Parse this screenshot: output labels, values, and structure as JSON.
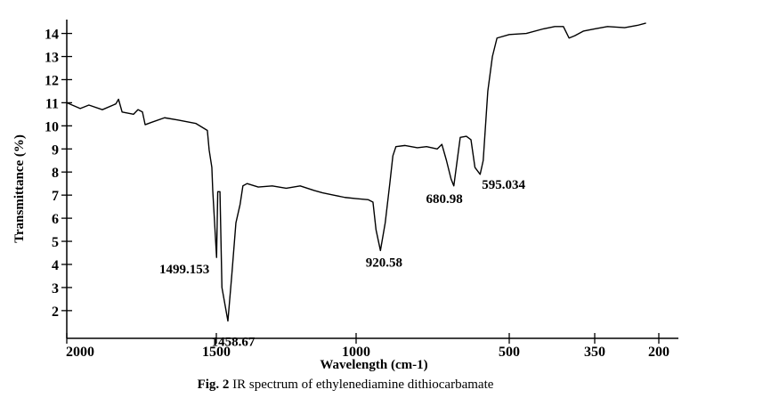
{
  "chart_data": {
    "type": "line",
    "y_label": "Transmittance (%)",
    "x_label": "Wavelength (cm-1)",
    "caption_label": "Fig. 2",
    "caption": "IR spectrum of ethylenediamine dithiocarbamate",
    "color": "#000000",
    "xlim": [
      2000,
      200
    ],
    "xticks": [
      2000,
      1500,
      1000,
      500,
      350,
      200
    ],
    "ylim": [
      0.8,
      14.6
    ],
    "yticks": [
      2,
      3,
      4,
      5,
      6,
      7,
      8,
      9,
      10,
      11,
      12,
      13,
      14
    ],
    "x": [
      2000,
      1955,
      1926,
      1881,
      1836,
      1827,
      1815,
      1777,
      1762,
      1747,
      1738,
      1717,
      1673,
      1628,
      1568,
      1530,
      1524,
      1515,
      1512,
      1499.153,
      1495,
      1487,
      1480,
      1458.67,
      1445,
      1430,
      1415,
      1405,
      1390,
      1350,
      1300,
      1250,
      1200,
      1150,
      1120,
      1080,
      1040,
      1000,
      960,
      945,
      935,
      920.58,
      905,
      890,
      880,
      870,
      840,
      800,
      770,
      735,
      720,
      705,
      690,
      680.98,
      670,
      660,
      640,
      625,
      612,
      595.034,
      585,
      570,
      555,
      540,
      500,
      470,
      440,
      420,
      405,
      395,
      385,
      370,
      350,
      320,
      280,
      250,
      230
    ],
    "values": [
      11.0,
      10.75,
      10.9,
      10.7,
      10.95,
      11.15,
      10.6,
      10.5,
      10.7,
      10.6,
      10.05,
      10.15,
      10.35,
      10.25,
      10.1,
      9.8,
      8.95,
      8.2,
      7.2,
      4.3,
      7.15,
      7.15,
      3.0,
      1.55,
      3.5,
      5.8,
      6.6,
      7.4,
      7.5,
      7.35,
      7.4,
      7.3,
      7.4,
      7.2,
      7.1,
      7.0,
      6.9,
      6.85,
      6.8,
      6.7,
      5.5,
      4.6,
      5.8,
      7.5,
      8.7,
      9.1,
      9.15,
      9.05,
      9.1,
      9.0,
      9.2,
      8.5,
      7.7,
      7.4,
      8.5,
      9.5,
      9.55,
      9.4,
      8.2,
      7.9,
      8.5,
      11.5,
      13.0,
      13.8,
      13.95,
      14.0,
      14.2,
      14.3,
      14.3,
      13.8,
      13.9,
      14.1,
      14.2,
      14.3,
      14.25,
      14.35,
      14.45
    ],
    "peaks": [
      {
        "label": "1499.153",
        "x": 1499.153,
        "y": 4.3
      },
      {
        "label": "1458.67",
        "x": 1458.67,
        "y": 1.55
      },
      {
        "label": "920.58",
        "x": 920.58,
        "y": 4.6
      },
      {
        "label": "680.98",
        "x": 680.98,
        "y": 7.4
      },
      {
        "label": "595.034",
        "x": 595.034,
        "y": 7.9
      }
    ]
  }
}
